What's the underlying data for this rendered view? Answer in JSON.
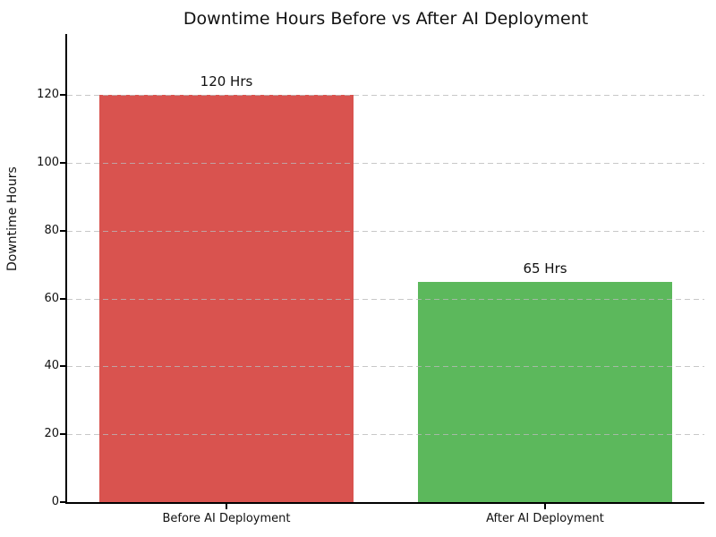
{
  "chart_data": {
    "type": "bar",
    "title": "Downtime Hours Before vs After AI Deployment",
    "xlabel": "",
    "ylabel": "Downtime Hours",
    "categories": [
      "Before AI Deployment",
      "After AI Deployment"
    ],
    "values": [
      120,
      65
    ],
    "bar_labels": [
      "120 Hrs",
      "65 Hrs"
    ],
    "bar_colors": [
      "#d9534f",
      "#5cb85c"
    ],
    "yticks": [
      0,
      20,
      40,
      60,
      80,
      100,
      120
    ],
    "ylim": [
      0,
      138
    ],
    "grid": {
      "axis": "y",
      "style": "dashed",
      "color": "#c8c8c8",
      "on": true
    },
    "legend": "none",
    "background_color": "#ffffff",
    "text_color": "#111111"
  }
}
